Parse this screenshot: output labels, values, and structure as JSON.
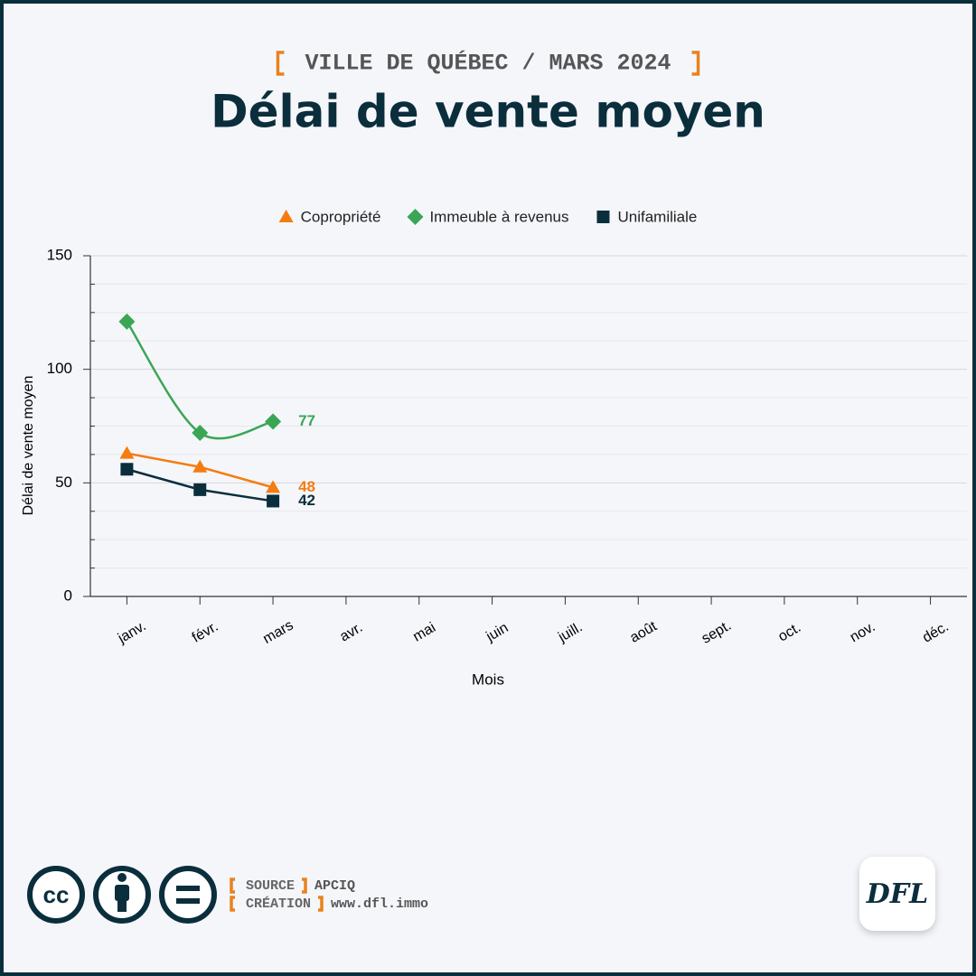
{
  "chart_data": {
    "type": "line",
    "subtitle": "VILLE DE QUÉBEC / MARS 2024",
    "title": "Délai de vente moyen",
    "y_label": "Délai de vente moyen",
    "x_label": "Mois",
    "categories": [
      "janv.",
      "févr.",
      "mars",
      "avr.",
      "mai",
      "juin",
      "juill.",
      "août",
      "sept.",
      "oct.",
      "nov.",
      "déc."
    ],
    "series": [
      {
        "name": "Copropriété",
        "color": "#f57c10",
        "marker": "triangle",
        "smooth": false,
        "values": [
          63,
          57,
          48,
          null,
          null,
          null,
          null,
          null,
          null,
          null,
          null,
          null
        ]
      },
      {
        "name": "Immeuble à revenus",
        "color": "#3aa655",
        "marker": "diamond",
        "smooth": true,
        "values": [
          121,
          72,
          77,
          null,
          null,
          null,
          null,
          null,
          null,
          null,
          null,
          null
        ]
      },
      {
        "name": "Unifamiliale",
        "color": "#0b2e3d",
        "marker": "square",
        "smooth": false,
        "values": [
          56,
          47,
          42,
          null,
          null,
          null,
          null,
          null,
          null,
          null,
          null,
          null
        ]
      }
    ],
    "ylim": [
      0,
      150
    ],
    "yticks": [
      0,
      50,
      100,
      150
    ],
    "yminor": [
      12.5,
      25,
      37.5,
      62.5,
      75,
      87.5,
      112.5,
      125,
      137.5
    ],
    "grid": true,
    "legend": "top"
  },
  "footer": {
    "license": "cc",
    "credits": [
      {
        "label": "SOURCE",
        "value": "APCIQ"
      },
      {
        "label": "CRÉATION",
        "value": "www.dfl.immo"
      }
    ],
    "logo": "DFL"
  }
}
